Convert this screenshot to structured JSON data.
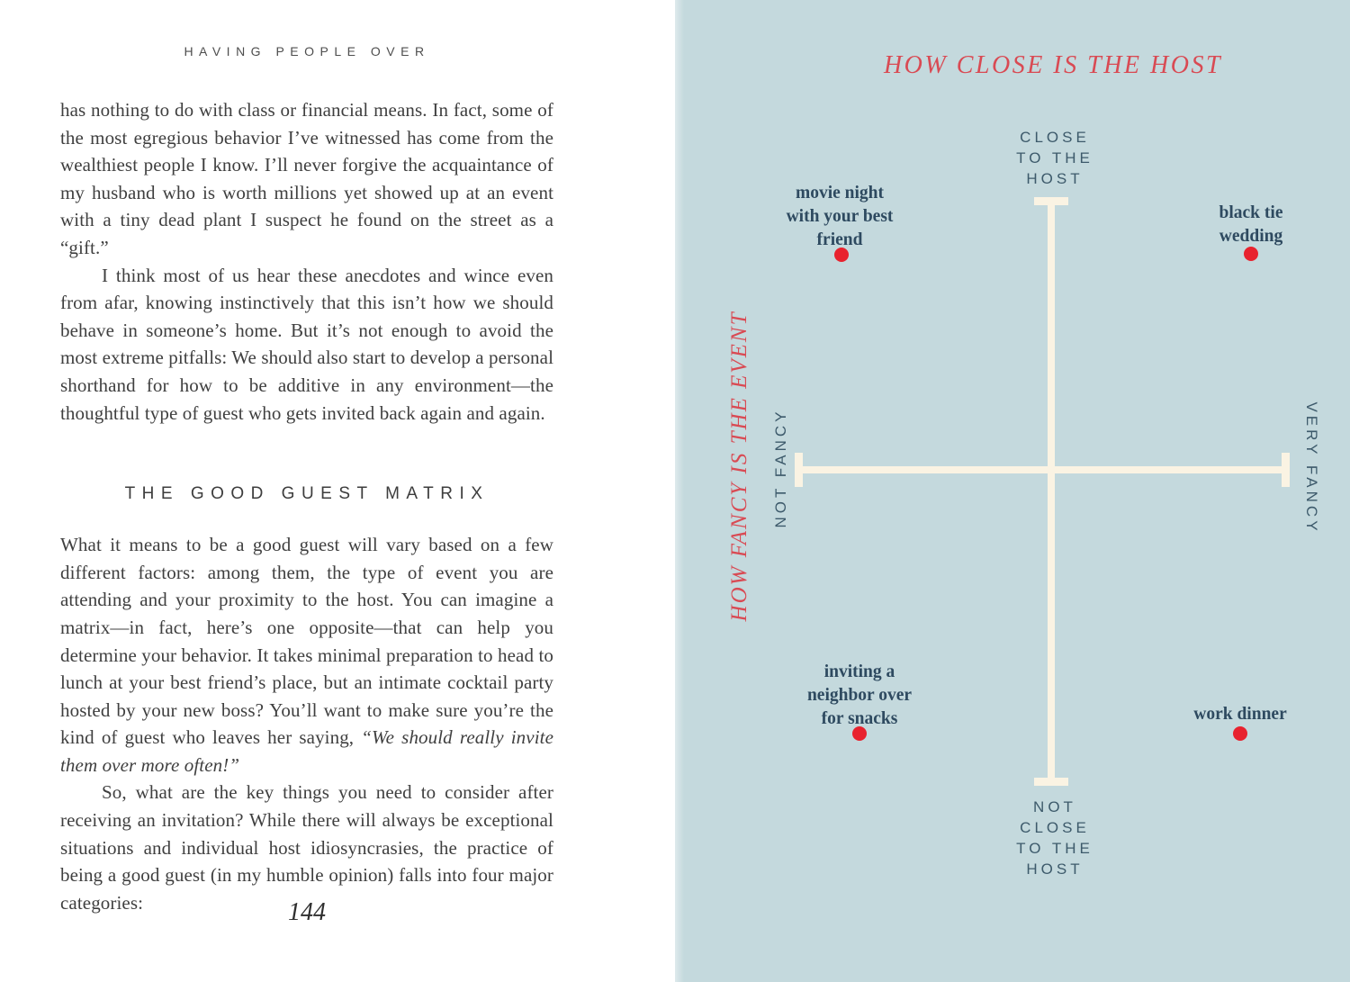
{
  "left_page": {
    "running_header": "HAVING PEOPLE OVER",
    "paragraphs_top": [
      {
        "indent": false,
        "segments": [
          {
            "text": "has nothing to do with class or financial means. In fact, some of the most egregious behavior I’ve witnessed has come from the wealthiest people I know. I’ll never forgive the acquaintance of my husband who is worth millions yet showed up at an event with a tiny dead plant I suspect he found on the street as a “gift.”"
          }
        ]
      },
      {
        "indent": true,
        "segments": [
          {
            "text": "I think most of us hear these anecdotes and wince even from afar, knowing instinctively that this isn’t how we should behave in someone’s home. But it’s not enough to avoid the most extreme pitfalls: We should also start to develop a personal shorthand for how to be additive in any environment—the thoughtful type of guest who gets invited back again and again."
          }
        ]
      }
    ],
    "section_heading": "THE GOOD GUEST MATRIX",
    "paragraphs_bottom": [
      {
        "indent": false,
        "segments": [
          {
            "text": "What it means to be a good guest will vary based on a few different factors: among them, the type of event you are attending and your proximity to the host. You can imagine a matrix—in fact, here’s one opposite—that can help you determine your behavior. It takes minimal preparation to head to lunch at your best friend’s place, but an intimate cocktail party hosted by your new boss? You’ll want to make sure you’re the kind of guest who leaves her saying, "
          },
          {
            "text": "“We should really invite them over more often!”",
            "italic": true
          }
        ]
      },
      {
        "indent": true,
        "segments": [
          {
            "text": "So, what are the key things you need to consider after receiving an invitation? While there will always be exceptional situations and individual host idiosyncrasies, the practice of being a good guest (in my humble opinion) falls into four major categories:"
          }
        ]
      }
    ],
    "page_number": "144"
  },
  "right_page": {
    "title": "HOW CLOSE IS THE HOST",
    "y_axis_rotated_title": "HOW FANCY IS THE EVENT",
    "axis_end_labels": {
      "top_lines": [
        "CLOSE",
        "TO THE",
        "HOST"
      ],
      "bottom_lines": [
        "NOT",
        "CLOSE",
        "TO THE",
        "HOST"
      ],
      "left": "NOT FANCY",
      "right": "VERY FANCY"
    },
    "points": [
      {
        "label_lines": [
          "movie night",
          "with your best",
          "friend"
        ]
      },
      {
        "label_lines": [
          "black tie",
          "wedding"
        ]
      },
      {
        "label_lines": [
          "inviting a",
          "neighbor over",
          "for snacks"
        ]
      },
      {
        "label_lines": [
          "work dinner"
        ]
      }
    ]
  },
  "colors": {
    "diagram_background": "#c4d9dd",
    "accent_red": "#d94a53",
    "dot_red": "#e8222e",
    "axis_cream": "#faf3e3",
    "slate_label": "#3d5a6b",
    "navy_point_label": "#2e4a60",
    "body_text": "#3f3f3f"
  },
  "chart_data": {
    "type": "scatter",
    "title": "HOW CLOSE IS THE HOST",
    "x_axis": {
      "title": "HOW FANCY IS THE EVENT",
      "left_end_label": "NOT FANCY",
      "right_end_label": "VERY FANCY",
      "range": [
        -1,
        1
      ]
    },
    "y_axis": {
      "top_end_label": "CLOSE TO THE HOST",
      "bottom_end_label": "NOT CLOSE TO THE HOST",
      "range": [
        -1,
        1
      ]
    },
    "grid": false,
    "points": [
      {
        "label": "movie night with your best friend",
        "x": -0.86,
        "y": 0.74
      },
      {
        "label": "black tie wedding",
        "x": 0.82,
        "y": 0.74
      },
      {
        "label": "inviting a neighbor over for snacks",
        "x": -0.79,
        "y": -0.9
      },
      {
        "label": "work dinner",
        "x": 0.78,
        "y": -0.9
      }
    ]
  }
}
